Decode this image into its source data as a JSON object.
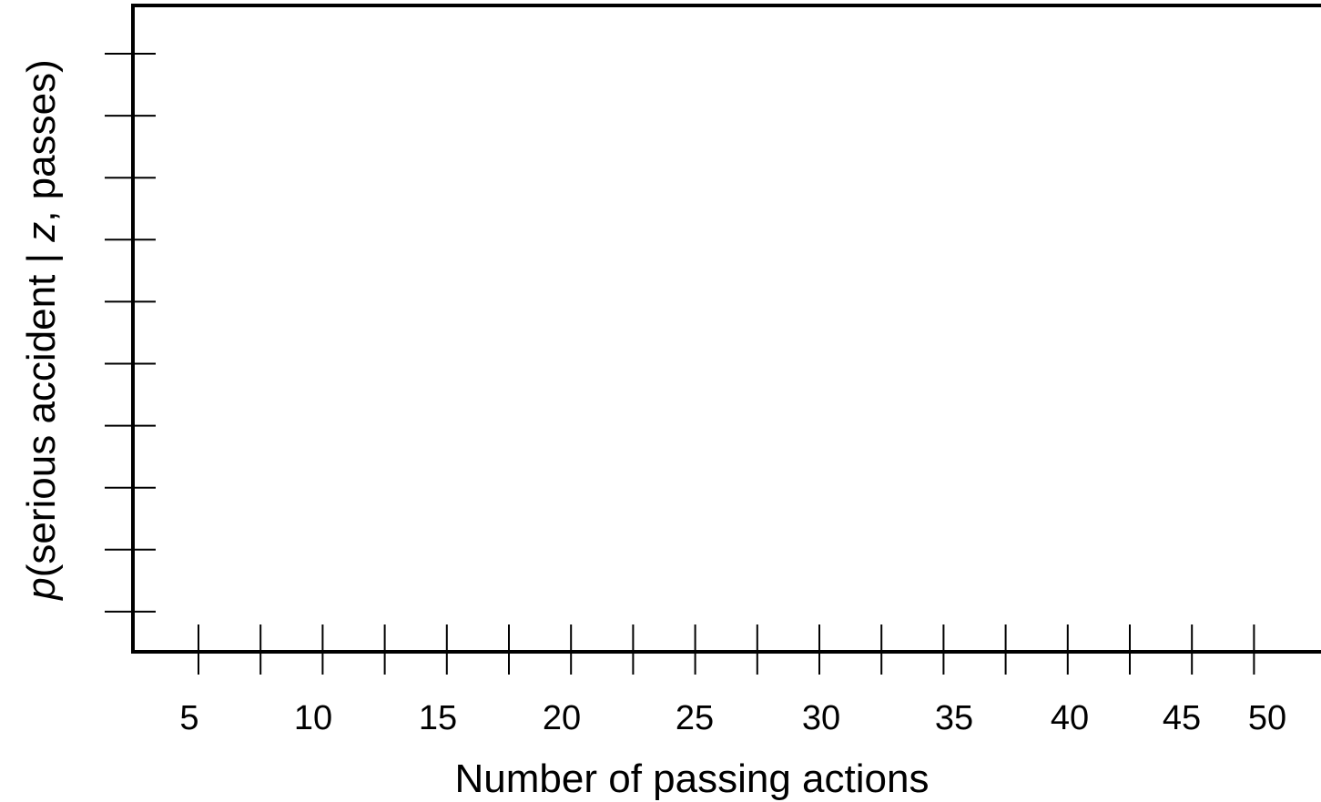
{
  "chart_data": {
    "type": "line",
    "title": "",
    "xlabel": "Number of passing actions",
    "ylabel": {
      "prefix": "p",
      "middle": "(serious accident | ",
      "var": "z",
      "suffix": ", passes)"
    },
    "x_tick_labels": [
      "5",
      "10",
      "15",
      "20",
      "25",
      "30",
      "35",
      "40",
      "45",
      "50"
    ],
    "x_tick_count": 18,
    "y_tick_count": 10,
    "y_tick_labels": [],
    "series": [],
    "grid": false,
    "legend": "none"
  }
}
